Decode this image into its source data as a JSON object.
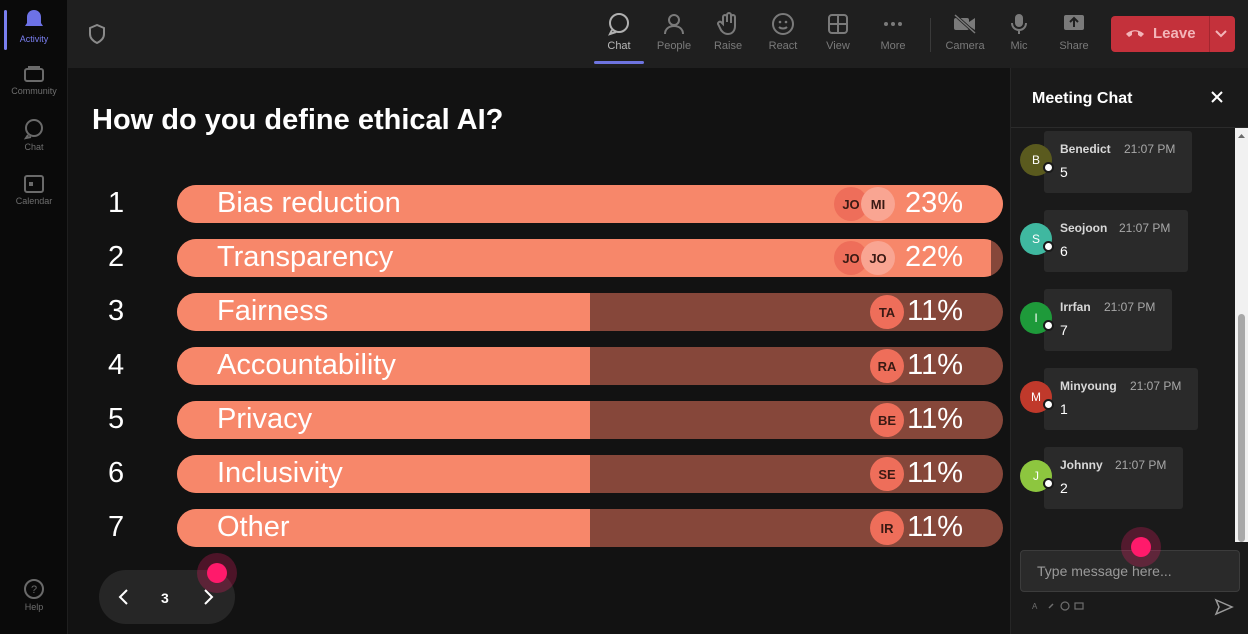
{
  "rail": {
    "items": [
      {
        "label": "Activity",
        "icon": "bell-icon",
        "active": true
      },
      {
        "label": "Community",
        "icon": "community-icon",
        "active": false
      },
      {
        "label": "Chat",
        "icon": "chat-icon",
        "active": false
      },
      {
        "label": "Calendar",
        "icon": "calendar-icon",
        "active": false
      }
    ],
    "help": "Help"
  },
  "toolbar": {
    "chat": "Chat",
    "people": "People",
    "raise": "Raise",
    "react": "React",
    "view": "View",
    "more": "More",
    "camera": "Camera",
    "mic": "Mic",
    "share": "Share",
    "leave": "Leave"
  },
  "poll": {
    "question": "How do you define ethical AI?",
    "options": [
      {
        "num": "1",
        "label": "Bias reduction",
        "pct": "23%",
        "fill": 1.0,
        "avatars": [
          "JO",
          "MI"
        ]
      },
      {
        "num": "2",
        "label": "Transparency",
        "pct": "22%",
        "fill": 0.985,
        "avatars": [
          "JO",
          "JO"
        ]
      },
      {
        "num": "3",
        "label": "Fairness",
        "pct": "11%",
        "fill": 0.5,
        "avatars": [
          "TA"
        ]
      },
      {
        "num": "4",
        "label": "Accountability",
        "pct": "11%",
        "fill": 0.5,
        "avatars": [
          "RA"
        ]
      },
      {
        "num": "5",
        "label": "Privacy",
        "pct": "11%",
        "fill": 0.5,
        "avatars": [
          "BE"
        ]
      },
      {
        "num": "6",
        "label": "Inclusivity",
        "pct": "11%",
        "fill": 0.5,
        "avatars": [
          "SE"
        ]
      },
      {
        "num": "7",
        "label": "Other",
        "pct": "11%",
        "fill": 0.5,
        "avatars": [
          "IR"
        ]
      }
    ]
  },
  "pager": {
    "page": "3"
  },
  "chat": {
    "title": "Meeting Chat",
    "messages": [
      {
        "initial": "B",
        "author": "Benedict",
        "time": "21:07 PM",
        "text": "5",
        "color": "#5a5a1e"
      },
      {
        "initial": "S",
        "author": "Seojoon",
        "time": "21:07 PM",
        "text": "6",
        "color": "#3fb8a0"
      },
      {
        "initial": "I",
        "author": "Irrfan",
        "time": "21:07 PM",
        "text": "7",
        "color": "#1e9a3a"
      },
      {
        "initial": "M",
        "author": "Minyoung",
        "time": "21:07 PM",
        "text": "1",
        "color": "#c0392b"
      },
      {
        "initial": "J",
        "author": "Johnny",
        "time": "21:07 PM",
        "text": "2",
        "color": "#8dc63f"
      }
    ],
    "placeholder": "Type message here..."
  },
  "colors": {
    "bar_fill": "#f7876a",
    "bar_track": "#86473a",
    "leave": "#c4313b",
    "accent": "#6e74e0"
  }
}
